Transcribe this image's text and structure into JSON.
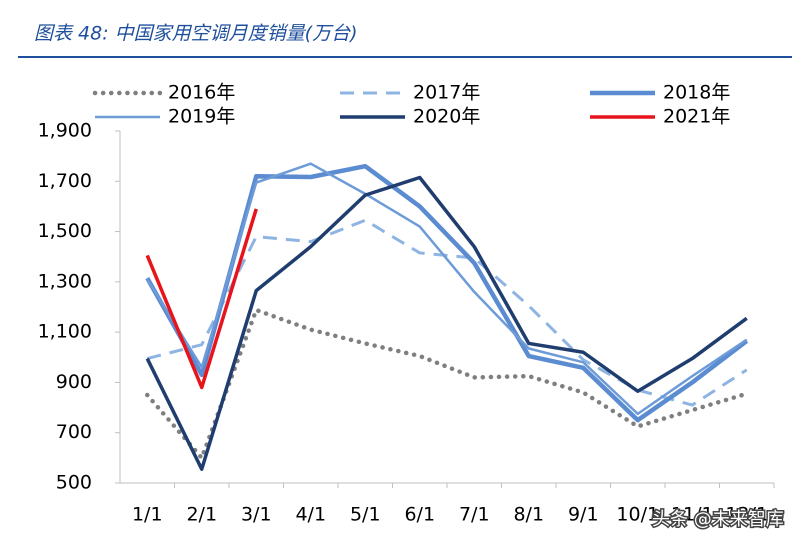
{
  "chart_data": {
    "type": "line",
    "title": "图表 48:  中国家用空调月度销量(万台)",
    "watermark": "头条 @未来智库",
    "categories": [
      "1/1",
      "2/1",
      "3/1",
      "4/1",
      "5/1",
      "6/1",
      "7/1",
      "8/1",
      "9/1",
      "10/1",
      "11/1",
      "12/1"
    ],
    "ylim": [
      500,
      1900
    ],
    "yticks": [
      500,
      700,
      900,
      {
        "value": 1100,
        "label": "1,100"
      },
      {
        "value": 1300,
        "label": "1,300"
      },
      {
        "value": 1500,
        "label": "1,500"
      },
      {
        "value": 1700,
        "label": "1,700"
      },
      {
        "value": 1900,
        "label": "1,900"
      }
    ],
    "grid": false,
    "legend": "top",
    "series": [
      {
        "name": "2016年",
        "color": "#7f7f7f",
        "style": "dotted",
        "values": [
          850,
          600,
          1188,
          1110,
          1055,
          1005,
          920,
          925,
          860,
          725,
          790,
          855
        ]
      },
      {
        "name": "2017年",
        "color": "#8eb4e3",
        "style": "dashed",
        "values": [
          995,
          1050,
          1480,
          1460,
          1545,
          1415,
          1395,
          1205,
          990,
          870,
          810,
          950
        ]
      },
      {
        "name": "2018年",
        "color": "#5b8bd0",
        "style": "solid",
        "values": [
          1315,
          930,
          1720,
          1717,
          1760,
          1600,
          1375,
          1005,
          958,
          750,
          900,
          1065
        ]
      },
      {
        "name": "2019年",
        "color": "#6d9bd8",
        "style": "solid",
        "values": [
          1310,
          960,
          1695,
          1770,
          1650,
          1520,
          1260,
          1035,
          980,
          775,
          925,
          1070
        ]
      },
      {
        "name": "2020年",
        "color": "#1f3d6e",
        "style": "solid",
        "values": [
          995,
          555,
          1265,
          1440,
          1645,
          1715,
          1440,
          1055,
          1020,
          865,
          995,
          1155
        ]
      },
      {
        "name": "2021年",
        "color": "#e8141c",
        "style": "solid",
        "values": [
          1405,
          880,
          1590,
          null,
          null,
          null,
          null,
          null,
          null,
          null,
          null,
          null
        ]
      }
    ]
  }
}
